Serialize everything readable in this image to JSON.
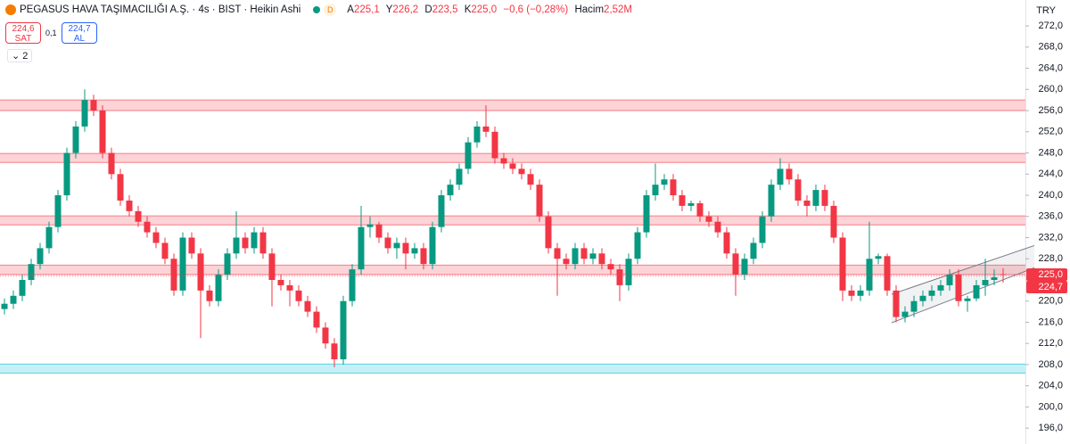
{
  "header": {
    "title": "PEGASUS HAVA TAŞIMACILIĞI A.Ş. · 4s · BIST · Heikin Ashi",
    "badge": "D",
    "ohlc": [
      {
        "key": "A",
        "value": "225,1"
      },
      {
        "key": "Y",
        "value": "226,2"
      },
      {
        "key": "D",
        "value": "223,5"
      },
      {
        "key": "K",
        "value": "225,0"
      }
    ],
    "change": "−0,6 (−0,28%)",
    "volume_label": "Hacim",
    "volume": "2,52M"
  },
  "trade": {
    "sell_price": "224,6",
    "sell": "SAT",
    "spread": "0,1",
    "buy_price": "224,7",
    "buy": "AL"
  },
  "indicators_count": "2",
  "currency": "TRY",
  "chart_data": {
    "type": "candlestick",
    "up_color": "#089981",
    "down_color": "#f23645",
    "ylim": [
      193,
      276.9
    ],
    "yticks": [
      {
        "value": 196,
        "label": "196,0"
      },
      {
        "value": 200,
        "label": "200,0"
      },
      {
        "value": 204,
        "label": "204,0"
      },
      {
        "value": 208,
        "label": "208,0"
      },
      {
        "value": 212,
        "label": "212,0"
      },
      {
        "value": 216,
        "label": "216,0"
      },
      {
        "value": 220,
        "label": "220,0"
      },
      {
        "value": 224,
        "label": "224,0"
      },
      {
        "value": 228,
        "label": "228,0"
      },
      {
        "value": 232,
        "label": "232,0"
      },
      {
        "value": 236,
        "label": "236,0"
      },
      {
        "value": 240,
        "label": "240,0"
      },
      {
        "value": 244,
        "label": "244,0"
      },
      {
        "value": 248,
        "label": "248,0"
      },
      {
        "value": 252,
        "label": "252,0"
      },
      {
        "value": 256,
        "label": "256,0"
      },
      {
        "value": 260,
        "label": "260,0"
      },
      {
        "value": 264,
        "label": "264,0"
      },
      {
        "value": 268,
        "label": "268,0"
      },
      {
        "value": 272,
        "label": "272,0"
      }
    ],
    "ohlc": [
      [
        218.5,
        220.5,
        217.5,
        219.5
      ],
      [
        219.5,
        222,
        218.5,
        221
      ],
      [
        221,
        225,
        220,
        224
      ],
      [
        224,
        228,
        223,
        227
      ],
      [
        227,
        231,
        226,
        230
      ],
      [
        230,
        235,
        229,
        234
      ],
      [
        234,
        241,
        233,
        240
      ],
      [
        240,
        249,
        239,
        248
      ],
      [
        248,
        254,
        247,
        253
      ],
      [
        253,
        260,
        252,
        258
      ],
      [
        258,
        259,
        255,
        256
      ],
      [
        256,
        257,
        247,
        248
      ],
      [
        248,
        249,
        243,
        244
      ],
      [
        244,
        245,
        238,
        239
      ],
      [
        239,
        240,
        236,
        237
      ],
      [
        237,
        238,
        234,
        235
      ],
      [
        235,
        236,
        232,
        233
      ],
      [
        233,
        234,
        230,
        231
      ],
      [
        231,
        232,
        227,
        228
      ],
      [
        228,
        229,
        221,
        222
      ],
      [
        222,
        233,
        221,
        232
      ],
      [
        232,
        233,
        228,
        229
      ],
      [
        229,
        230,
        213,
        222
      ],
      [
        222,
        223,
        219,
        220
      ],
      [
        220,
        226,
        219,
        225
      ],
      [
        225,
        230,
        224,
        229
      ],
      [
        229,
        237,
        228,
        232
      ],
      [
        232,
        233,
        229,
        230
      ],
      [
        230,
        234,
        229,
        233
      ],
      [
        233,
        234,
        228,
        229
      ],
      [
        229,
        230,
        219,
        224
      ],
      [
        224,
        225,
        222,
        223
      ],
      [
        223,
        224,
        219,
        222
      ],
      [
        222,
        223,
        219,
        220
      ],
      [
        220,
        221,
        217,
        218
      ],
      [
        218,
        219,
        214,
        215
      ],
      [
        215,
        216,
        211,
        212
      ],
      [
        212,
        213,
        207.5,
        209
      ],
      [
        209,
        221,
        208,
        220
      ],
      [
        220,
        227,
        219,
        226
      ],
      [
        226,
        238,
        225,
        234
      ],
      [
        234,
        236,
        232,
        234.5
      ],
      [
        234.5,
        235,
        231,
        232
      ],
      [
        232,
        233,
        229,
        230
      ],
      [
        230,
        232,
        228,
        231
      ],
      [
        231,
        232,
        226,
        229
      ],
      [
        229,
        231,
        228,
        230
      ],
      [
        230,
        231,
        226,
        227
      ],
      [
        227,
        235,
        226,
        234
      ],
      [
        234,
        241,
        233,
        240
      ],
      [
        240,
        243,
        239,
        242
      ],
      [
        242,
        246,
        241,
        245
      ],
      [
        245,
        251,
        244,
        250
      ],
      [
        250,
        254,
        249,
        253
      ],
      [
        253,
        257,
        251,
        252
      ],
      [
        252,
        253,
        246,
        247
      ],
      [
        247,
        248,
        245,
        246
      ],
      [
        246,
        247,
        244,
        245
      ],
      [
        245,
        246,
        243,
        244
      ],
      [
        244,
        245,
        241,
        242
      ],
      [
        242,
        243,
        235,
        236
      ],
      [
        236,
        237,
        229,
        230
      ],
      [
        230,
        231,
        221,
        228
      ],
      [
        228,
        229,
        226,
        227
      ],
      [
        227,
        231,
        226,
        230
      ],
      [
        230,
        231,
        227,
        228
      ],
      [
        228,
        230,
        227,
        229
      ],
      [
        229,
        230,
        226,
        227
      ],
      [
        227,
        228,
        225,
        226
      ],
      [
        226,
        227,
        220,
        223
      ],
      [
        223,
        229,
        222,
        228
      ],
      [
        228,
        234,
        227,
        233
      ],
      [
        233,
        241,
        232,
        240
      ],
      [
        240,
        246,
        239,
        242
      ],
      [
        242,
        244,
        241,
        243
      ],
      [
        243,
        244,
        239,
        240
      ],
      [
        240,
        241,
        237,
        238
      ],
      [
        238,
        239,
        237,
        238.5
      ],
      [
        238.5,
        239,
        235,
        236
      ],
      [
        236,
        237,
        234,
        235
      ],
      [
        235,
        236,
        232,
        233
      ],
      [
        233,
        234,
        228,
        229
      ],
      [
        229,
        230,
        221,
        225
      ],
      [
        225,
        229,
        224,
        228
      ],
      [
        228,
        232,
        227,
        231
      ],
      [
        231,
        237,
        230,
        236
      ],
      [
        236,
        243,
        235,
        242
      ],
      [
        242,
        247,
        241,
        245
      ],
      [
        245,
        246,
        242,
        243
      ],
      [
        243,
        244,
        238,
        239
      ],
      [
        239,
        240,
        236,
        238
      ],
      [
        238,
        242,
        237,
        241
      ],
      [
        241,
        242,
        237,
        238
      ],
      [
        238,
        239,
        231,
        232
      ],
      [
        232,
        233,
        220,
        222
      ],
      [
        222,
        223,
        220,
        221
      ],
      [
        221,
        223,
        220,
        222
      ],
      [
        222,
        235,
        221,
        228
      ],
      [
        228,
        229,
        227,
        228.5
      ],
      [
        228.5,
        229,
        221,
        222
      ],
      [
        222,
        223,
        216,
        217
      ],
      [
        217,
        219,
        216,
        218
      ],
      [
        218,
        221,
        217,
        220
      ],
      [
        220,
        222,
        219,
        221
      ],
      [
        221,
        223,
        220,
        222
      ],
      [
        222,
        224,
        221,
        223
      ],
      [
        223,
        226,
        222,
        225
      ],
      [
        225,
        226,
        219,
        220
      ],
      [
        220,
        221,
        218,
        220.5
      ],
      [
        220.5,
        224,
        220,
        223
      ],
      [
        223,
        228,
        221,
        224
      ],
      [
        224,
        226,
        223,
        224.5
      ],
      [
        225.1,
        226.2,
        223.5,
        225.0
      ]
    ],
    "zones": [
      {
        "low": 256,
        "high": 258,
        "color": "#f23645"
      },
      {
        "low": 246.2,
        "high": 247.9,
        "color": "#f23645"
      },
      {
        "low": 234.4,
        "high": 236.1,
        "color": "#f23645"
      },
      {
        "low": 225,
        "high": 226.8,
        "color": "#f23645"
      },
      {
        "low": 206.4,
        "high": 208.1,
        "color": "#00bcd4"
      }
    ],
    "channel": {
      "x": [
        99.5,
        115.5
      ],
      "lower": [
        215.9,
        226.3
      ],
      "upper": [
        221.3,
        230.5
      ],
      "color": "#787b86"
    },
    "price_labels": [
      {
        "value": 225.0,
        "label": "225,0"
      },
      {
        "value": 224.7,
        "label": "224,7"
      }
    ]
  }
}
